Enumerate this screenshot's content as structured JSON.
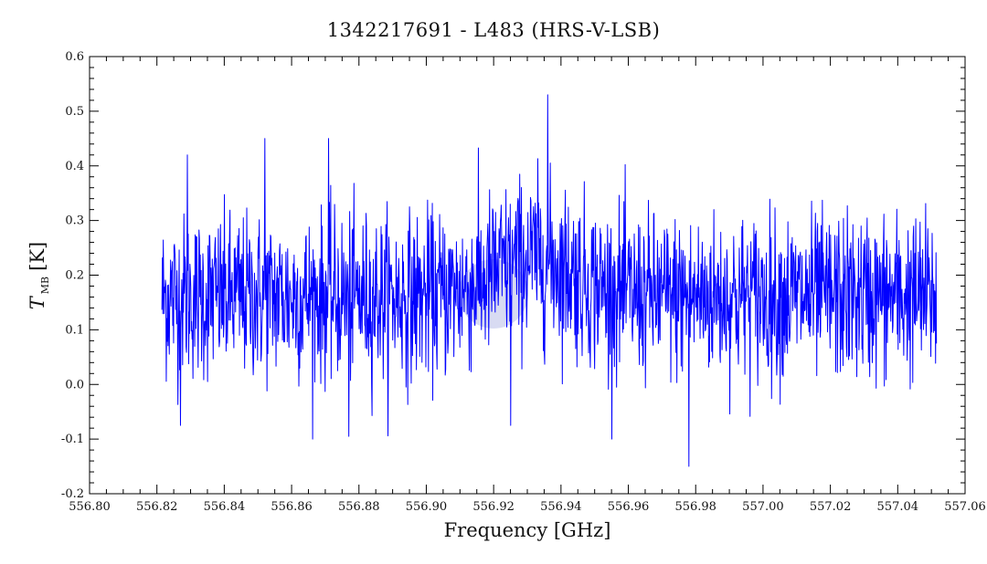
{
  "chart_data": {
    "type": "line",
    "title": "1342217691 - L483 (HRS-V-LSB)",
    "xlabel": "Frequency [GHz]",
    "ylabel_main": "T",
    "ylabel_sub": "MB",
    "ylabel_unit": "[K]",
    "xlim": [
      556.8,
      557.06
    ],
    "ylim": [
      -0.2,
      0.6
    ],
    "xticks": [
      "556.80",
      "556.82",
      "556.84",
      "556.86",
      "556.88",
      "556.90",
      "556.92",
      "556.94",
      "556.96",
      "556.98",
      "557.00",
      "557.02",
      "557.04",
      "557.06"
    ],
    "yticks": [
      "-0.2",
      "-0.1",
      "0.0",
      "0.1",
      "0.2",
      "0.3",
      "0.4",
      "0.5",
      "0.6"
    ],
    "grid": false,
    "series": [
      {
        "color": "#0000ff",
        "x_start": 556.8215,
        "x_end": 557.0515,
        "n_points": 1800,
        "baseline_mean": 0.16,
        "noise_rms": 0.075,
        "line_feature": {
          "center": 556.932,
          "peak": 0.07,
          "width": 0.012
        },
        "extremes": [
          {
            "x": 556.936,
            "y": 0.53
          },
          {
            "x": 556.978,
            "y": -0.15
          },
          {
            "x": 556.877,
            "y": -0.095
          },
          {
            "x": 556.827,
            "y": -0.075
          },
          {
            "x": 556.852,
            "y": 0.45
          },
          {
            "x": 556.871,
            "y": 0.45
          },
          {
            "x": 556.925,
            "y": -0.075
          },
          {
            "x": 556.829,
            "y": 0.42
          }
        ]
      }
    ]
  },
  "watermark": {
    "color": "#b8bde8"
  }
}
